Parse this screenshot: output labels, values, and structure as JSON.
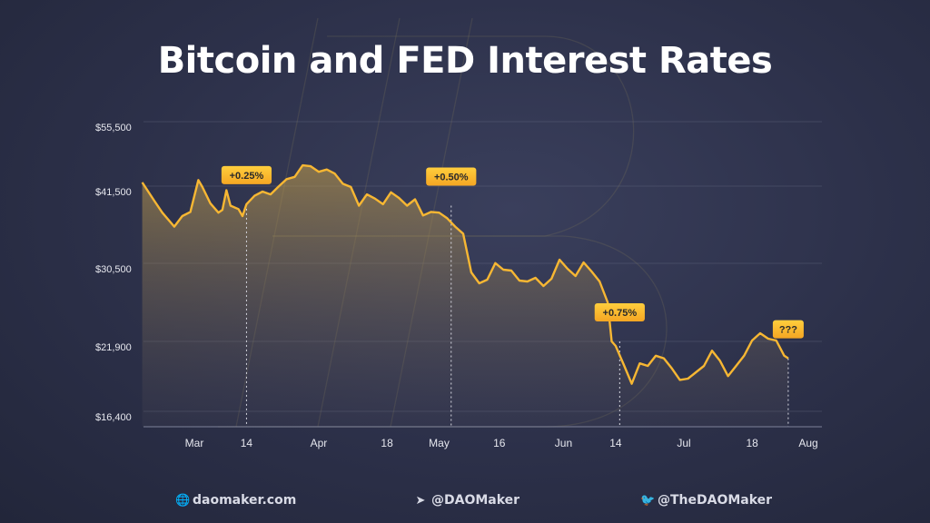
{
  "title": "Bitcoin and FED Interest Rates",
  "footer": {
    "website": "daomaker.com",
    "website_icon": "globe-icon",
    "telegram": "@DAOMaker",
    "telegram_icon": "telegram-icon",
    "twitter": "@TheDAOMaker",
    "twitter_icon": "twitter-icon"
  },
  "colors": {
    "background": "#2c3049",
    "line": "#f7b733",
    "callout": "#f9b52c",
    "text": "#ffffff",
    "axis_text": "#e6e7ee"
  },
  "chart_data": {
    "type": "line",
    "title": "Bitcoin and FED Interest Rates",
    "xlabel": "",
    "ylabel": "",
    "grid": true,
    "y_ticks": [
      16400,
      21900,
      30500,
      41500,
      55500
    ],
    "y_tick_labels": [
      "$16,400",
      "$21,900",
      "$30,500",
      "$41,500",
      "$55,500"
    ],
    "x_ticks": [
      {
        "label": "Mar",
        "date": "2022-03-01"
      },
      {
        "label": "14",
        "date": "2022-03-14"
      },
      {
        "label": "Apr",
        "date": "2022-04-01"
      },
      {
        "label": "18",
        "date": "2022-04-18"
      },
      {
        "label": "May",
        "date": "2022-05-01"
      },
      {
        "label": "16",
        "date": "2022-05-16"
      },
      {
        "label": "Jun",
        "date": "2022-06-01"
      },
      {
        "label": "14",
        "date": "2022-06-14"
      },
      {
        "label": "Jul",
        "date": "2022-07-01"
      },
      {
        "label": "18",
        "date": "2022-07-18"
      },
      {
        "label": "Aug",
        "date": "2022-08-01"
      }
    ],
    "series": [
      {
        "points": [
          [
            "2022-02-16",
            43500
          ],
          [
            "2022-02-19",
            40200
          ],
          [
            "2022-02-21",
            38500
          ],
          [
            "2022-02-24",
            36500
          ],
          [
            "2022-02-26",
            38000
          ],
          [
            "2022-02-28",
            38600
          ],
          [
            "2022-03-02",
            44000
          ],
          [
            "2022-03-03",
            42500
          ],
          [
            "2022-03-05",
            39800
          ],
          [
            "2022-03-07",
            38500
          ],
          [
            "2022-03-08",
            38900
          ],
          [
            "2022-03-09",
            41800
          ],
          [
            "2022-03-10",
            39500
          ],
          [
            "2022-03-12",
            39000
          ],
          [
            "2022-03-13",
            38000
          ],
          [
            "2022-03-14",
            39700
          ],
          [
            "2022-03-16",
            40900
          ],
          [
            "2022-03-18",
            41500
          ],
          [
            "2022-03-20",
            41100
          ],
          [
            "2022-03-22",
            42600
          ],
          [
            "2022-03-24",
            44200
          ],
          [
            "2022-03-26",
            44700
          ],
          [
            "2022-03-28",
            47200
          ],
          [
            "2022-03-30",
            47000
          ],
          [
            "2022-04-01",
            45800
          ],
          [
            "2022-04-03",
            46300
          ],
          [
            "2022-04-05",
            45400
          ],
          [
            "2022-04-07",
            43200
          ],
          [
            "2022-04-09",
            42500
          ],
          [
            "2022-04-11",
            39500
          ],
          [
            "2022-04-13",
            41100
          ],
          [
            "2022-04-15",
            40500
          ],
          [
            "2022-04-17",
            39700
          ],
          [
            "2022-04-19",
            41400
          ],
          [
            "2022-04-21",
            40600
          ],
          [
            "2022-04-23",
            39500
          ],
          [
            "2022-04-25",
            40400
          ],
          [
            "2022-04-27",
            38100
          ],
          [
            "2022-04-29",
            38600
          ],
          [
            "2022-05-01",
            38500
          ],
          [
            "2022-05-03",
            37700
          ],
          [
            "2022-05-05",
            36500
          ],
          [
            "2022-05-07",
            35500
          ],
          [
            "2022-05-09",
            30100
          ],
          [
            "2022-05-11",
            28900
          ],
          [
            "2022-05-13",
            29300
          ],
          [
            "2022-05-15",
            31300
          ],
          [
            "2022-05-17",
            30400
          ],
          [
            "2022-05-19",
            30300
          ],
          [
            "2022-05-21",
            29200
          ],
          [
            "2022-05-23",
            29100
          ],
          [
            "2022-05-25",
            29500
          ],
          [
            "2022-05-27",
            28600
          ],
          [
            "2022-05-29",
            29400
          ],
          [
            "2022-05-31",
            31800
          ],
          [
            "2022-06-02",
            30500
          ],
          [
            "2022-06-04",
            29700
          ],
          [
            "2022-06-06",
            31400
          ],
          [
            "2022-06-08",
            30200
          ],
          [
            "2022-06-10",
            29100
          ],
          [
            "2022-06-12",
            26800
          ],
          [
            "2022-06-13",
            22500
          ],
          [
            "2022-06-14",
            22000
          ],
          [
            "2022-06-16",
            20500
          ],
          [
            "2022-06-18",
            19000
          ],
          [
            "2022-06-20",
            20600
          ],
          [
            "2022-06-22",
            20400
          ],
          [
            "2022-06-24",
            21200
          ],
          [
            "2022-06-26",
            21000
          ],
          [
            "2022-06-28",
            20200
          ],
          [
            "2022-06-30",
            19300
          ],
          [
            "2022-07-02",
            19400
          ],
          [
            "2022-07-04",
            19900
          ],
          [
            "2022-07-06",
            20400
          ],
          [
            "2022-07-08",
            21600
          ],
          [
            "2022-07-10",
            20800
          ],
          [
            "2022-07-12",
            19600
          ],
          [
            "2022-07-14",
            20400
          ],
          [
            "2022-07-16",
            21200
          ],
          [
            "2022-07-18",
            22600
          ],
          [
            "2022-07-20",
            23400
          ],
          [
            "2022-07-22",
            22800
          ],
          [
            "2022-07-24",
            22600
          ],
          [
            "2022-07-26",
            21200
          ],
          [
            "2022-07-27",
            21000
          ]
        ]
      }
    ],
    "annotations": [
      {
        "date": "2022-03-14",
        "value": 39700,
        "label": "+0.25%"
      },
      {
        "date": "2022-05-04",
        "value": 39500,
        "label": "+0.50%"
      },
      {
        "date": "2022-06-15",
        "value": 22500,
        "label": "+0.75%"
      },
      {
        "date": "2022-07-27",
        "value": 21000,
        "label": "???"
      }
    ]
  }
}
